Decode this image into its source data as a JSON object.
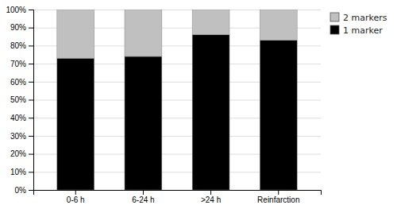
{
  "chart_data": {
    "type": "bar",
    "stacked": true,
    "categories": [
      "0-6 h",
      "6-24 h",
      ">24 h",
      "Reinfarction"
    ],
    "series": [
      {
        "name": "1 marker",
        "color": "#000000",
        "values": [
          73,
          74,
          86,
          83
        ]
      },
      {
        "name": "2 markers",
        "color": "#c0c0c0",
        "values": [
          27,
          26,
          14,
          17
        ]
      }
    ],
    "ylim": [
      0,
      100
    ],
    "yticks": [
      {
        "value": 0,
        "label": "0%"
      },
      {
        "value": 10,
        "label": "10%"
      },
      {
        "value": 20,
        "label": "20%"
      },
      {
        "value": 30,
        "label": "30%"
      },
      {
        "value": 40,
        "label": "40%"
      },
      {
        "value": 50,
        "label": "50%"
      },
      {
        "value": 60,
        "label": "60%"
      },
      {
        "value": 70,
        "label": "70%"
      },
      {
        "value": 80,
        "label": "80%"
      },
      {
        "value": 90,
        "label": "90%"
      },
      {
        "value": 100,
        "label": "100%"
      }
    ],
    "grid": true,
    "legend": "upper right"
  }
}
